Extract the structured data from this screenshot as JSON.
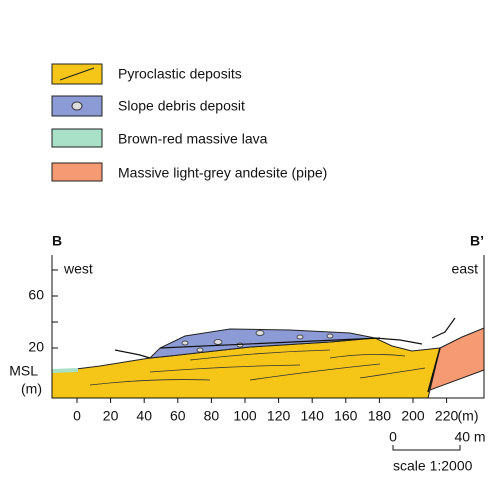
{
  "legend": [
    {
      "label": "Pyroclastic deposits",
      "color": "#f5c518"
    },
    {
      "label": "Slope debris deposit",
      "color": "#8c9ad6"
    },
    {
      "label": "Brown-red massive lava",
      "color": "#a8e0c8"
    },
    {
      "label": "Massive light-grey andesite (pipe)",
      "color": "#f59a72"
    }
  ],
  "section": {
    "left_label": "B",
    "right_label": "B’",
    "west": "west",
    "east": "east",
    "y_axis": {
      "label_top": "MSL",
      "label_bottom": "(m)",
      "ticks": [
        "60",
        "20"
      ]
    },
    "x_axis": {
      "ticks": [
        "0",
        "20",
        "40",
        "60",
        "80",
        "100",
        "120",
        "140",
        "160",
        "180",
        "200",
        "220"
      ],
      "unit": "(m)"
    }
  },
  "scale": {
    "start": "0",
    "end": "40 m",
    "label": "scale 1:2000"
  }
}
